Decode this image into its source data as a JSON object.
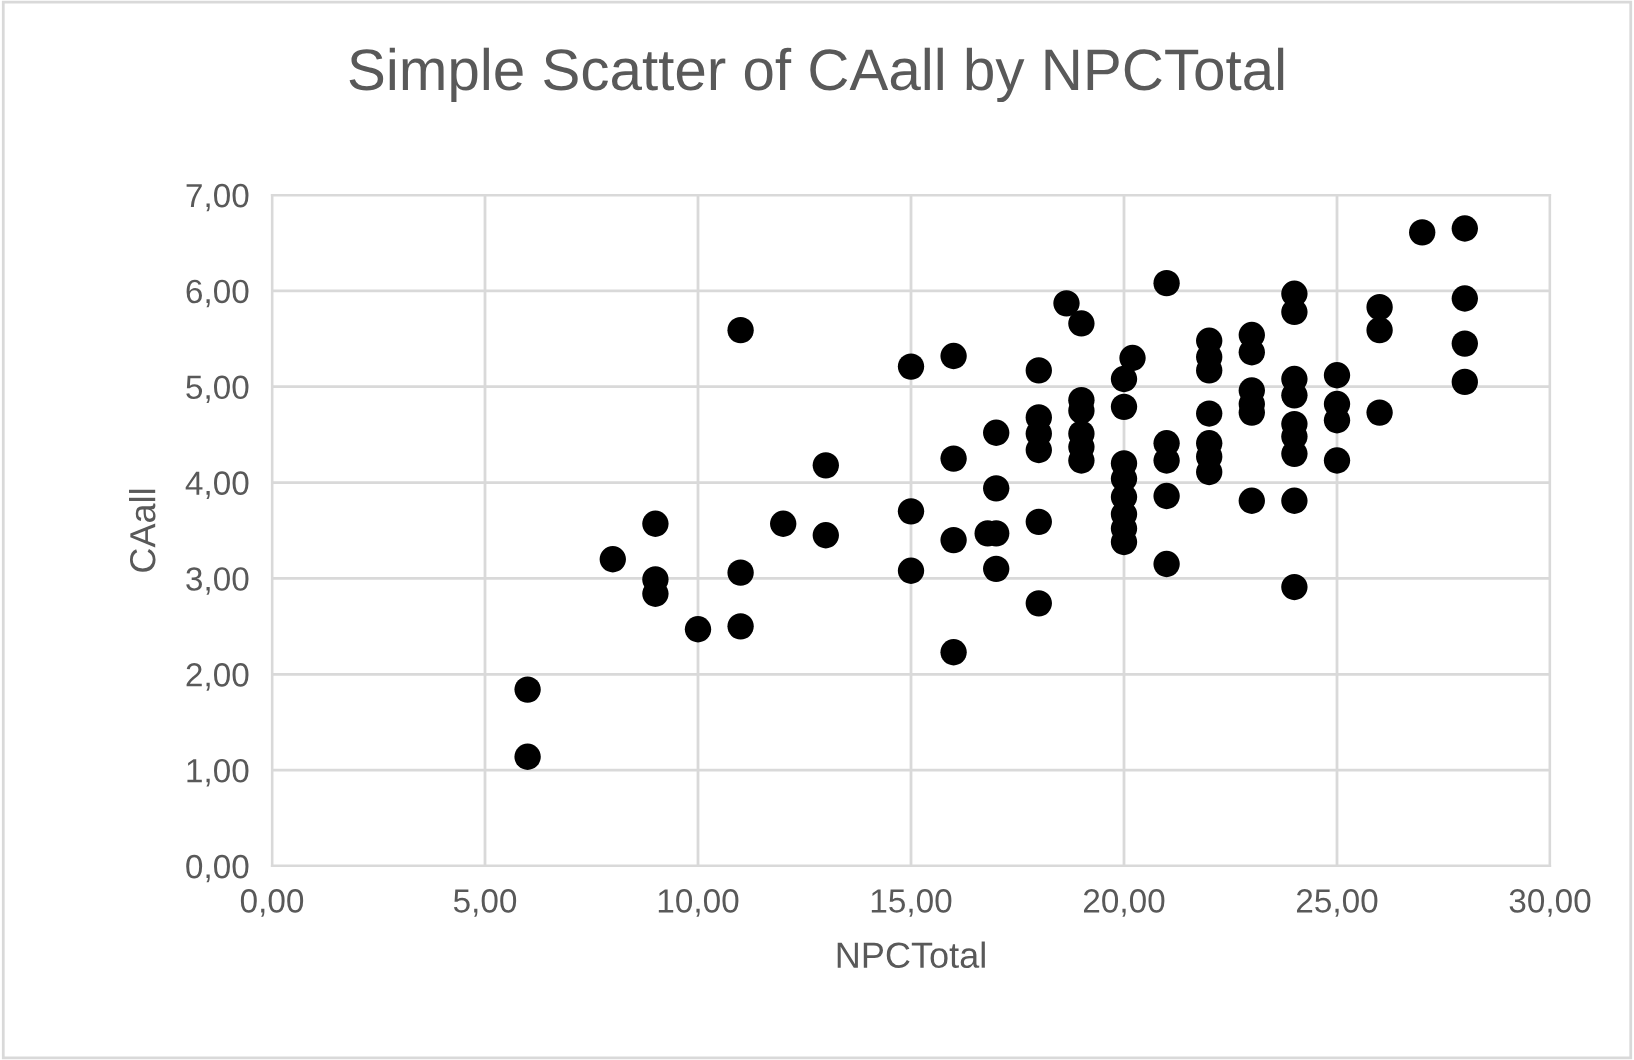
{
  "chart_data": {
    "type": "scatter",
    "title": "Simple Scatter of CAall by NPCTotal",
    "xlabel": "NPCTotal",
    "ylabel": "CAall",
    "x": [
      6,
      6,
      8,
      9,
      9,
      9,
      10,
      11,
      11,
      11,
      12,
      13,
      13,
      15,
      15,
      15,
      16,
      16,
      16,
      16,
      17,
      17,
      16.8,
      17,
      17,
      18,
      18,
      18,
      18,
      18,
      18,
      18.65,
      19,
      19,
      19,
      19,
      19,
      19,
      20.2,
      20,
      20,
      20,
      20,
      20,
      20,
      20,
      20,
      21,
      21,
      21,
      21,
      21,
      22,
      22,
      22,
      22,
      22,
      22,
      22,
      23,
      23,
      23,
      23,
      23,
      23,
      24,
      24,
      24,
      24,
      24,
      24,
      24,
      24,
      24,
      25,
      25,
      25,
      25,
      26,
      26,
      26,
      27,
      28,
      28,
      28,
      28
    ],
    "values": [
      1.14,
      1.84,
      3.2,
      3.57,
      2.99,
      2.84,
      2.47,
      5.59,
      3.06,
      2.5,
      3.57,
      4.18,
      3.45,
      5.21,
      3.7,
      3.08,
      5.32,
      4.25,
      3.4,
      2.23,
      4.52,
      3.94,
      3.47,
      3.47,
      3.1,
      5.17,
      4.68,
      4.51,
      4.34,
      3.59,
      2.74,
      5.87,
      5.66,
      4.86,
      4.75,
      4.51,
      4.37,
      4.23,
      5.3,
      5.08,
      4.79,
      4.2,
      4.04,
      3.85,
      3.67,
      3.52,
      3.38,
      6.08,
      4.41,
      4.23,
      3.86,
      3.15,
      5.48,
      5.31,
      5.17,
      4.72,
      4.41,
      4.27,
      4.11,
      5.54,
      5.36,
      4.96,
      4.82,
      4.73,
      3.81,
      5.97,
      5.78,
      5.08,
      4.91,
      4.61,
      4.48,
      4.3,
      3.81,
      2.91,
      5.12,
      4.82,
      4.65,
      4.23,
      5.83,
      5.59,
      4.73,
      6.61,
      6.65,
      5.92,
      5.45,
      5.05
    ],
    "color": "#000000",
    "marker": "circle",
    "grid": true,
    "xlim": [
      0,
      30
    ],
    "xticks": [
      {
        "value": 0,
        "label": "0,00"
      },
      {
        "value": 5,
        "label": "5,00"
      },
      {
        "value": 10,
        "label": "10,00"
      },
      {
        "value": 15,
        "label": "15,00"
      },
      {
        "value": 20,
        "label": "20,00"
      },
      {
        "value": 25,
        "label": "25,00"
      },
      {
        "value": 30,
        "label": "30,00"
      }
    ],
    "ylim": [
      0,
      7
    ],
    "yticks": [
      {
        "value": 0,
        "label": "0,00"
      },
      {
        "value": 1,
        "label": "1,00"
      },
      {
        "value": 2,
        "label": "2,00"
      },
      {
        "value": 3,
        "label": "3,00"
      },
      {
        "value": 4,
        "label": "4,00"
      },
      {
        "value": 5,
        "label": "5,00"
      },
      {
        "value": 6,
        "label": "6,00"
      },
      {
        "value": 7,
        "label": "7,00"
      }
    ]
  }
}
